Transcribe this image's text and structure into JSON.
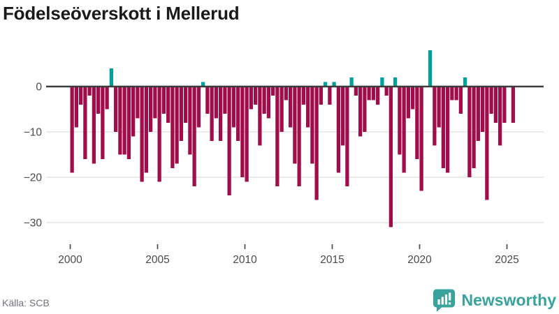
{
  "title": "Födelseöverskott i Mellerud",
  "source": "Källa: SCB",
  "branding": {
    "name": "Newsworthy",
    "color": "#38a39d",
    "icon": "bar-chart-speech-bubble"
  },
  "chart_data": {
    "type": "bar",
    "title": "Födelseöverskott i Mellerud",
    "x_unit": "quarter",
    "start": "2000-Q1",
    "end": "2025-Q2",
    "values": [
      -19,
      -9,
      -4,
      -16,
      -2,
      -17,
      -6,
      -16,
      -5,
      4,
      -10,
      -15,
      -15,
      -16,
      -11,
      -7,
      -21,
      -19,
      -10,
      -7,
      -21,
      -6,
      -8,
      -18,
      -17,
      -12,
      -8,
      -15,
      -22,
      -9,
      1,
      -6,
      -12,
      -7,
      -12,
      -6,
      -24,
      -9,
      -12,
      -20,
      -21,
      -5,
      -4,
      -13,
      -6,
      -7,
      -2,
      -22,
      -10,
      -3,
      -9,
      -17,
      -22,
      -4,
      -9,
      -17,
      -25,
      -4,
      1,
      -4,
      1,
      -19,
      -13,
      -22,
      2,
      -2,
      -11,
      -10,
      -3,
      -3,
      -4,
      2,
      -2,
      -31,
      2,
      -15,
      -19,
      -7,
      -5,
      -16,
      -23,
      0,
      8,
      -13,
      -9,
      -18,
      -19,
      -3,
      -3,
      -6,
      2,
      -20,
      -18,
      -12,
      -10,
      -25,
      -6,
      -8,
      -13,
      -8,
      0,
      -8
    ],
    "x_ticks": [
      2000,
      2005,
      2010,
      2015,
      2020,
      2025
    ],
    "y_ticks": [
      0,
      -10,
      -20,
      -30
    ],
    "ylim": [
      -33,
      9
    ],
    "grid": "horizontal",
    "legend": "none",
    "positive_color": "#00a09b",
    "negative_color": "#a10c4b",
    "zero_line_color": "#3c3c3c",
    "grid_color": "#e3e3e3",
    "axis_text_color": "#4a4a4a"
  }
}
